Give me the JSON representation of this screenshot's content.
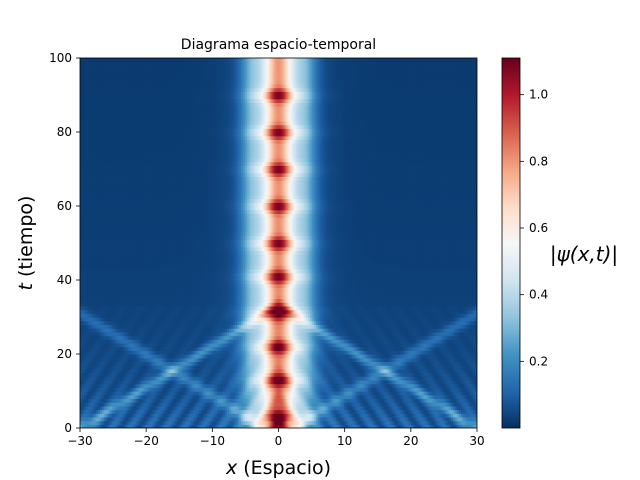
{
  "chart_data": {
    "type": "heatmap",
    "title": "Diagrama espacio-temporal",
    "xlabel_var": "x",
    "xlabel_text": " (Espacio)",
    "ylabel_var": "t",
    "ylabel_text": " (tiempo)",
    "colorbar_label": "|ψ(x,t)|",
    "colormap": "RdBu_r",
    "xlim": [
      -30,
      30
    ],
    "ylim": [
      0,
      100
    ],
    "zlim": [
      0.0,
      1.11
    ],
    "xticks": [
      -30,
      -20,
      -10,
      0,
      10,
      20,
      30
    ],
    "xtick_labels": [
      "−30",
      "−20",
      "−10",
      "0",
      "10",
      "20",
      "30"
    ],
    "yticks": [
      0,
      20,
      40,
      60,
      80,
      100
    ],
    "ytick_labels": [
      "0",
      "20",
      "40",
      "60",
      "80",
      "100"
    ],
    "cticks": [
      0.2,
      0.4,
      0.6,
      0.8,
      1.0
    ],
    "ctick_labels": [
      "0.2",
      "0.4",
      "0.6",
      "0.8",
      "1.0"
    ],
    "core_peak_times": [
      3,
      13,
      22,
      31,
      41,
      50,
      60,
      70,
      80,
      90
    ],
    "core_half_width": 1.8,
    "radiation_speed": 0.9
  }
}
